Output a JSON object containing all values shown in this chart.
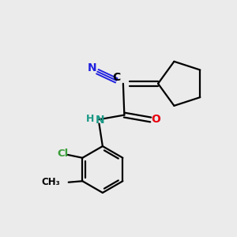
{
  "background_color": "#ebebeb",
  "bond_color": "#000000",
  "atom_colors": {
    "N_amide": "#1a9986",
    "O_label": "#e8000d",
    "Cl_label": "#3a9e3a",
    "C_label": "#000000",
    "H_label": "#1a9986",
    "N_nitrile": "#2020e0"
  },
  "figsize": [
    3.0,
    3.0
  ],
  "dpi": 100,
  "xlim": [
    0,
    10
  ],
  "ylim": [
    0,
    10
  ]
}
